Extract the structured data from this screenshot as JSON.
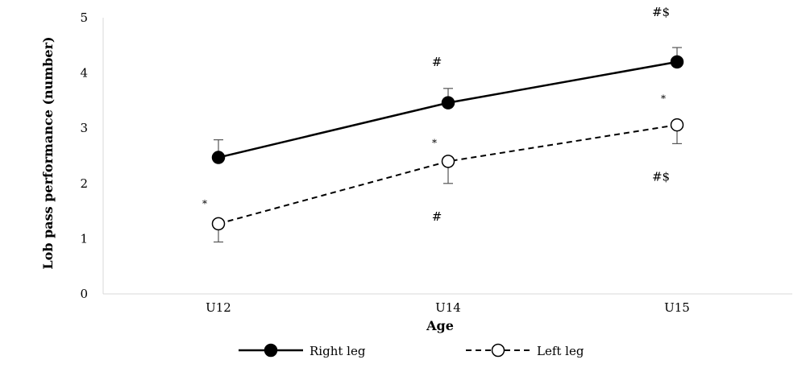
{
  "chart_data": {
    "type": "line",
    "xlabel": "Age",
    "ylabel": "Lob pass performance (number)",
    "categories": [
      "U12",
      "U14",
      "U15"
    ],
    "ylim": [
      0,
      5
    ],
    "yticks": [
      "0",
      "1",
      "2",
      "3",
      "4",
      "5"
    ],
    "grid": false,
    "legend_position": "bottom",
    "series": [
      {
        "name": "Right leg",
        "values": [
          2.47,
          3.46,
          4.2
        ],
        "error": [
          0.32,
          0.26,
          0.26
        ],
        "error_direction": "up",
        "line_style": "solid",
        "marker": "filled-circle",
        "color": "#000000"
      },
      {
        "name": "Left leg",
        "values": [
          1.27,
          2.4,
          3.06
        ],
        "error": [
          0.33,
          0.4,
          0.34
        ],
        "error_direction": "down",
        "line_style": "dashed",
        "marker": "open-circle",
        "color": "#000000"
      }
    ],
    "annotations": [
      {
        "text": "*",
        "category": "U12",
        "y": 1.65
      },
      {
        "text": "#",
        "category": "U14",
        "y": 4.2
      },
      {
        "text": "*",
        "category": "U14",
        "y": 2.75
      },
      {
        "text": "#",
        "category": "U14",
        "y": 1.4
      },
      {
        "text": "#$",
        "category": "U15",
        "y": 5.1
      },
      {
        "text": "*",
        "category": "U15",
        "y": 3.55
      },
      {
        "text": "#$",
        "category": "U15",
        "y": 2.12
      }
    ]
  }
}
